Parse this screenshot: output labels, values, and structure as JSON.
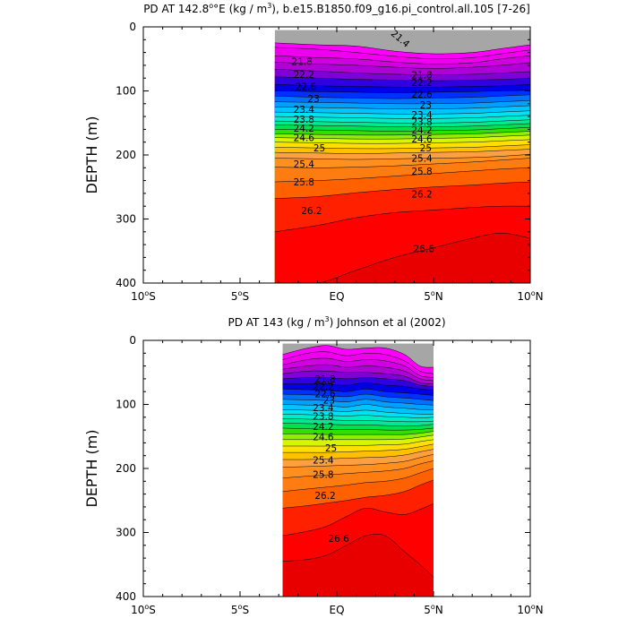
{
  "chart_data": [
    {
      "type": "contour",
      "title": "PD AT 142.8°E (kg / m³), b.e15.B1850.f09_g16.pi_control.all.105 [7-26]",
      "title_parts": [
        "PD AT 142.8",
        "°E (kg / m",
        "3",
        "), b.e15.B1850.f09_g16.pi_control.all.105 [7-26]"
      ],
      "ylabel": "DEPTH (m)",
      "xlim": [
        -10,
        10
      ],
      "ylim": [
        0,
        400
      ],
      "data_xlim": [
        -3.2,
        10
      ],
      "data_top": 5,
      "x_ticks": [
        -10,
        -5,
        0,
        5,
        10
      ],
      "x_tick_labels": [
        "10°S",
        "5°S",
        "EQ",
        "5°N",
        "10°N"
      ],
      "y_ticks": [
        0,
        100,
        200,
        300,
        400
      ],
      "y_tick_labels": [
        "0",
        "100",
        "200",
        "300",
        "400"
      ],
      "levels": [
        21.4,
        21.6,
        21.8,
        22.0,
        22.2,
        22.4,
        22.6,
        22.8,
        23.0,
        23.2,
        23.4,
        23.6,
        23.8,
        24.0,
        24.2,
        24.4,
        24.6,
        24.8,
        25.0,
        25.2,
        25.4,
        25.6,
        25.8,
        26.0,
        26.2,
        26.4,
        26.6,
        26.8
      ],
      "isopycnal_depths": {
        "x": [
          -3.2,
          -1,
          1,
          3,
          5,
          7,
          8.5,
          10
        ],
        "rows": [
          [
            25,
            28,
            30,
            38,
            42,
            40,
            34,
            28
          ],
          [
            32,
            35,
            40,
            46,
            50,
            48,
            42,
            36
          ],
          [
            45,
            48,
            50,
            55,
            58,
            56,
            50,
            45
          ],
          [
            55,
            58,
            60,
            63,
            65,
            63,
            60,
            56
          ],
          [
            66,
            69,
            72,
            74,
            75,
            74,
            72,
            70
          ],
          [
            78,
            80,
            82,
            83,
            84,
            83,
            82,
            80
          ],
          [
            90,
            92,
            93,
            94,
            94,
            93,
            92,
            90
          ],
          [
            100,
            101,
            102,
            103,
            102,
            101,
            100,
            99
          ],
          [
            108,
            110,
            111,
            112,
            111,
            110,
            108,
            106
          ],
          [
            117,
            118,
            119,
            120,
            120,
            119,
            117,
            115
          ],
          [
            125,
            126,
            127,
            128,
            128,
            127,
            125,
            123
          ],
          [
            133,
            134,
            135,
            136,
            136,
            135,
            133,
            131
          ],
          [
            140,
            141,
            142,
            143,
            143,
            142,
            140,
            138
          ],
          [
            147,
            148,
            149,
            150,
            150,
            149,
            147,
            145
          ],
          [
            153,
            154,
            155,
            156,
            156,
            155,
            153,
            151
          ],
          [
            160,
            161,
            162,
            163,
            162,
            161,
            159,
            157
          ],
          [
            167,
            168,
            169,
            169,
            168,
            167,
            165,
            163
          ],
          [
            173,
            174,
            175,
            175,
            174,
            173,
            171,
            169
          ],
          [
            180,
            181,
            182,
            182,
            181,
            180,
            178,
            176
          ],
          [
            188,
            189,
            190,
            190,
            189,
            188,
            186,
            184
          ],
          [
            196,
            197,
            198,
            197,
            196,
            195,
            193,
            191
          ],
          [
            205,
            206,
            207,
            206,
            205,
            204,
            202,
            199
          ],
          [
            219,
            220,
            219,
            217,
            214,
            211,
            208,
            205
          ],
          [
            242,
            240,
            237,
            233,
            229,
            225,
            222,
            220
          ],
          [
            268,
            265,
            259,
            254,
            250,
            247,
            244,
            242
          ],
          [
            320,
            310,
            298,
            290,
            286,
            282,
            280,
            280
          ],
          [
            400,
            400,
            380,
            360,
            345,
            330,
            322,
            330
          ]
        ]
      },
      "contour_labels": [
        {
          "text": "21.4",
          "x": 3.3,
          "y": 18,
          "rot": 40
        },
        {
          "text": "21.8",
          "x": -1.8,
          "y": 54,
          "rot": 0
        },
        {
          "text": "22.2",
          "x": -1.7,
          "y": 74,
          "rot": 0
        },
        {
          "text": "22.6",
          "x": -1.6,
          "y": 93,
          "rot": 0
        },
        {
          "text": "23",
          "x": -1.2,
          "y": 112,
          "rot": 0
        },
        {
          "text": "23.4",
          "x": -1.7,
          "y": 129,
          "rot": 0
        },
        {
          "text": "23.8",
          "x": -1.7,
          "y": 144,
          "rot": 0
        },
        {
          "text": "24.2",
          "x": -1.7,
          "y": 158,
          "rot": 0
        },
        {
          "text": "24.6",
          "x": -1.7,
          "y": 173,
          "rot": 0
        },
        {
          "text": "25",
          "x": -0.9,
          "y": 189,
          "rot": 0
        },
        {
          "text": "25.4",
          "x": -1.7,
          "y": 214,
          "rot": 0
        },
        {
          "text": "25.8",
          "x": -1.7,
          "y": 242,
          "rot": 0
        },
        {
          "text": "26.2",
          "x": -1.3,
          "y": 287,
          "rot": 0
        },
        {
          "text": "21.8",
          "x": 4.4,
          "y": 75,
          "rot": 0
        },
        {
          "text": "22.2",
          "x": 4.4,
          "y": 87,
          "rot": 0
        },
        {
          "text": "22.6",
          "x": 4.4,
          "y": 105,
          "rot": 0
        },
        {
          "text": "23",
          "x": 4.6,
          "y": 122,
          "rot": 0
        },
        {
          "text": "23.4",
          "x": 4.4,
          "y": 137,
          "rot": 0
        },
        {
          "text": "23.8",
          "x": 4.4,
          "y": 148,
          "rot": 0
        },
        {
          "text": "24.2",
          "x": 4.4,
          "y": 161,
          "rot": 0
        },
        {
          "text": "24.6",
          "x": 4.4,
          "y": 175,
          "rot": 0
        },
        {
          "text": "25",
          "x": 4.6,
          "y": 189,
          "rot": 0
        },
        {
          "text": "25.4",
          "x": 4.4,
          "y": 205,
          "rot": 0
        },
        {
          "text": "25.8",
          "x": 4.4,
          "y": 225,
          "rot": 0
        },
        {
          "text": "26.2",
          "x": 4.4,
          "y": 261,
          "rot": 0
        },
        {
          "text": "26.6",
          "x": 4.5,
          "y": 346,
          "rot": 0
        }
      ]
    },
    {
      "type": "contour",
      "title": "PD AT 143 (kg / m³) Johnson et al (2002)",
      "title_parts": [
        "PD AT 143 (kg / m",
        "3",
        ") Johnson et al (2002)"
      ],
      "ylabel": "DEPTH (m)",
      "xlim": [
        -10,
        10
      ],
      "ylim": [
        0,
        400
      ],
      "data_xlim": [
        -2.8,
        5
      ],
      "data_top": 5,
      "x_ticks": [
        -10,
        -5,
        0,
        5,
        10
      ],
      "x_tick_labels": [
        "10°S",
        "5°S",
        "EQ",
        "5°N",
        "10°N"
      ],
      "y_ticks": [
        0,
        100,
        200,
        300,
        400
      ],
      "y_tick_labels": [
        "0",
        "100",
        "200",
        "300",
        "400"
      ],
      "levels": [
        21.4,
        21.6,
        21.8,
        22.0,
        22.2,
        22.4,
        22.6,
        22.8,
        23.0,
        23.2,
        23.4,
        23.6,
        23.8,
        24.0,
        24.2,
        24.4,
        24.6,
        24.8,
        25.0,
        25.2,
        25.4,
        25.6,
        25.8,
        26.0,
        26.2,
        26.4,
        26.6,
        26.8
      ],
      "isopycnal_depths": {
        "x": [
          -2.8,
          -1.5,
          -0.5,
          0.5,
          1.5,
          2.5,
          3.5,
          4.3,
          5
        ],
        "rows": [
          [
            22,
            12,
            8,
            14,
            12,
            12,
            22,
            40,
            42
          ],
          [
            30,
            20,
            18,
            24,
            20,
            22,
            32,
            48,
            52
          ],
          [
            38,
            30,
            28,
            33,
            30,
            32,
            40,
            55,
            58
          ],
          [
            45,
            40,
            38,
            42,
            40,
            42,
            48,
            60,
            63
          ],
          [
            52,
            48,
            48,
            50,
            50,
            52,
            56,
            66,
            68
          ],
          [
            60,
            58,
            58,
            60,
            58,
            60,
            63,
            70,
            72
          ],
          [
            68,
            68,
            68,
            70,
            66,
            70,
            72,
            76,
            78
          ],
          [
            76,
            77,
            78,
            80,
            76,
            80,
            82,
            84,
            86
          ],
          [
            84,
            85,
            86,
            88,
            84,
            88,
            90,
            92,
            94
          ],
          [
            92,
            93,
            94,
            96,
            92,
            96,
            98,
            100,
            101
          ],
          [
            100,
            101,
            102,
            104,
            100,
            104,
            106,
            108,
            108
          ],
          [
            108,
            109,
            110,
            111,
            109,
            112,
            114,
            115,
            115
          ],
          [
            115,
            116,
            117,
            118,
            117,
            119,
            120,
            121,
            120
          ],
          [
            122,
            123,
            124,
            125,
            125,
            126,
            127,
            127,
            126
          ],
          [
            129,
            130,
            131,
            132,
            132,
            133,
            134,
            133,
            131
          ],
          [
            137,
            138,
            139,
            139,
            139,
            140,
            140,
            139,
            137
          ],
          [
            146,
            146,
            147,
            147,
            147,
            147,
            147,
            145,
            142
          ],
          [
            155,
            155,
            155,
            155,
            155,
            155,
            154,
            151,
            148
          ],
          [
            165,
            165,
            165,
            164,
            164,
            163,
            162,
            158,
            155
          ],
          [
            175,
            175,
            175,
            174,
            173,
            172,
            170,
            166,
            162
          ],
          [
            186,
            186,
            185,
            184,
            183,
            182,
            179,
            174,
            170
          ],
          [
            198,
            197,
            196,
            195,
            194,
            192,
            189,
            183,
            178
          ],
          [
            215,
            212,
            210,
            208,
            206,
            204,
            200,
            193,
            188
          ],
          [
            236,
            232,
            229,
            226,
            222,
            220,
            215,
            207,
            200
          ],
          [
            262,
            258,
            254,
            250,
            245,
            242,
            236,
            226,
            218
          ],
          [
            305,
            298,
            290,
            275,
            262,
            268,
            272,
            264,
            255
          ],
          [
            345,
            342,
            335,
            320,
            305,
            305,
            330,
            350,
            370
          ]
        ]
      },
      "contour_labels": [
        {
          "text": "21.8",
          "x": -0.6,
          "y": 60,
          "rot": 0
        },
        {
          "text": "22.2",
          "x": -0.7,
          "y": 72,
          "rot": 0
        },
        {
          "text": "22.6",
          "x": -0.6,
          "y": 83,
          "rot": 0
        },
        {
          "text": "23",
          "x": -0.4,
          "y": 93,
          "rot": 0
        },
        {
          "text": "23.4",
          "x": -0.7,
          "y": 105,
          "rot": 0
        },
        {
          "text": "23.8",
          "x": -0.7,
          "y": 118,
          "rot": 0
        },
        {
          "text": "24.2",
          "x": -0.7,
          "y": 134,
          "rot": 0
        },
        {
          "text": "24.6",
          "x": -0.7,
          "y": 150,
          "rot": 0
        },
        {
          "text": "25",
          "x": -0.3,
          "y": 168,
          "rot": 0
        },
        {
          "text": "25.4",
          "x": -0.7,
          "y": 187,
          "rot": 0
        },
        {
          "text": "25.8",
          "x": -0.7,
          "y": 209,
          "rot": 0
        },
        {
          "text": "26.2",
          "x": -0.6,
          "y": 242,
          "rot": 0
        },
        {
          "text": "26.6",
          "x": 0.1,
          "y": 309,
          "rot": 0
        }
      ]
    }
  ]
}
